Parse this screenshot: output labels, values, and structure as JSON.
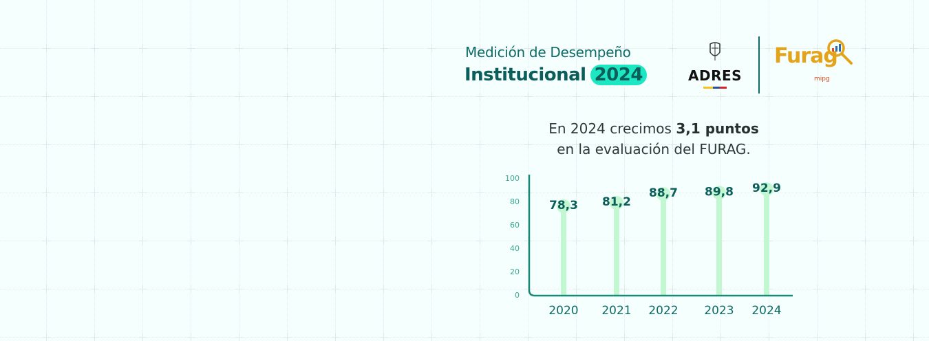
{
  "header": {
    "title_line1": "Medición de Desempeño",
    "title_line2": "Institucional",
    "title_year": "2024",
    "logos": {
      "adres": "ADRES",
      "furag": "Furag",
      "furag_sub": "mipg"
    }
  },
  "subtitle": {
    "prefix": "En 2024 crecimos ",
    "highlight": "3,1 puntos",
    "line2": "en la evaluación del FURAG."
  },
  "colors": {
    "background": "#f5fffd",
    "accent": "#1de6c3",
    "primary": "#0c5e5a",
    "bar": "#c3f7d2",
    "axis": "#1a8a78",
    "furag": "#e3a31a"
  },
  "chart_data": {
    "type": "bar",
    "categories": [
      "2020",
      "2021",
      "2022",
      "2023",
      "2024"
    ],
    "values": [
      78.3,
      81.2,
      88.7,
      89.8,
      92.9
    ],
    "data_labels": [
      "78,3",
      "81,2",
      "88,7",
      "89,8",
      "92,9"
    ],
    "yticks": [
      "0",
      "20",
      "40",
      "60",
      "80",
      "100"
    ],
    "ylim": [
      0,
      100
    ],
    "grid": false
  }
}
